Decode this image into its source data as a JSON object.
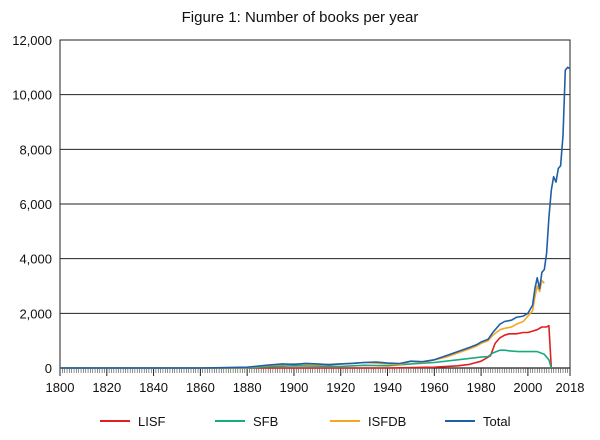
{
  "chart_data": {
    "type": "line",
    "title": "Figure 1: Number of books per year",
    "xlabel": "",
    "ylabel": "",
    "xlim": [
      1800,
      2018
    ],
    "ylim": [
      0,
      12000
    ],
    "grid": "horizontal",
    "legend_position": "bottom",
    "x_tick_labels": [
      "1800",
      "1820",
      "1840",
      "1860",
      "1880",
      "1900",
      "1920",
      "1940",
      "1960",
      "1980",
      "2000",
      "2018"
    ],
    "x_tick_values": [
      1800,
      1820,
      1840,
      1860,
      1880,
      1900,
      1920,
      1940,
      1960,
      1980,
      2000,
      2018
    ],
    "y_tick_labels": [
      "0",
      "2,000",
      "4,000",
      "6,000",
      "8,000",
      "10,000",
      "12,000"
    ],
    "y_tick_values": [
      0,
      2000,
      4000,
      6000,
      8000,
      10000,
      12000
    ],
    "series": [
      {
        "name": "LISF",
        "color": "#e02020",
        "points": [
          [
            1800,
            0
          ],
          [
            1940,
            0
          ],
          [
            1960,
            30
          ],
          [
            1970,
            80
          ],
          [
            1975,
            130
          ],
          [
            1980,
            250
          ],
          [
            1984,
            450
          ],
          [
            1986,
            900
          ],
          [
            1988,
            1100
          ],
          [
            1990,
            1200
          ],
          [
            1992,
            1250
          ],
          [
            1995,
            1250
          ],
          [
            1998,
            1300
          ],
          [
            2000,
            1300
          ],
          [
            2002,
            1350
          ],
          [
            2004,
            1400
          ],
          [
            2006,
            1500
          ],
          [
            2008,
            1500
          ],
          [
            2009,
            1550
          ],
          [
            2010,
            0
          ]
        ]
      },
      {
        "name": "SFB",
        "color": "#1aaa80",
        "points": [
          [
            1800,
            0
          ],
          [
            1860,
            0
          ],
          [
            1880,
            0
          ],
          [
            1890,
            50
          ],
          [
            1900,
            80
          ],
          [
            1920,
            60
          ],
          [
            1930,
            100
          ],
          [
            1940,
            80
          ],
          [
            1950,
            150
          ],
          [
            1960,
            200
          ],
          [
            1970,
            300
          ],
          [
            1975,
            350
          ],
          [
            1980,
            400
          ],
          [
            1983,
            420
          ],
          [
            1985,
            550
          ],
          [
            1988,
            650
          ],
          [
            1990,
            650
          ],
          [
            1993,
            620
          ],
          [
            1996,
            600
          ],
          [
            2000,
            600
          ],
          [
            2004,
            600
          ],
          [
            2007,
            500
          ],
          [
            2009,
            300
          ],
          [
            2010,
            0
          ]
        ]
      },
      {
        "name": "ISFDB",
        "color": "#f5a623",
        "points": [
          [
            1800,
            0
          ],
          [
            1860,
            0
          ],
          [
            1880,
            20
          ],
          [
            1890,
            100
          ],
          [
            1900,
            150
          ],
          [
            1910,
            120
          ],
          [
            1920,
            150
          ],
          [
            1930,
            200
          ],
          [
            1940,
            150
          ],
          [
            1945,
            120
          ],
          [
            1950,
            250
          ],
          [
            1955,
            200
          ],
          [
            1960,
            300
          ],
          [
            1965,
            400
          ],
          [
            1970,
            550
          ],
          [
            1975,
            700
          ],
          [
            1978,
            800
          ],
          [
            1980,
            900
          ],
          [
            1983,
            1000
          ],
          [
            1985,
            1200
          ],
          [
            1988,
            1400
          ],
          [
            1990,
            1450
          ],
          [
            1993,
            1500
          ],
          [
            1995,
            1600
          ],
          [
            1998,
            1700
          ],
          [
            2000,
            1900
          ],
          [
            2002,
            2100
          ],
          [
            2003,
            2600
          ],
          [
            2004,
            3000
          ],
          [
            2005,
            2800
          ],
          [
            2006,
            3200
          ],
          [
            2007,
            3100
          ]
        ]
      },
      {
        "name": "Total",
        "color": "#1f5fa8",
        "points": [
          [
            1800,
            0
          ],
          [
            1860,
            0
          ],
          [
            1880,
            30
          ],
          [
            1888,
            100
          ],
          [
            1895,
            150
          ],
          [
            1900,
            130
          ],
          [
            1905,
            170
          ],
          [
            1910,
            150
          ],
          [
            1915,
            120
          ],
          [
            1920,
            150
          ],
          [
            1925,
            170
          ],
          [
            1930,
            200
          ],
          [
            1935,
            220
          ],
          [
            1940,
            180
          ],
          [
            1945,
            160
          ],
          [
            1950,
            250
          ],
          [
            1955,
            230
          ],
          [
            1960,
            300
          ],
          [
            1965,
            450
          ],
          [
            1970,
            600
          ],
          [
            1975,
            750
          ],
          [
            1978,
            850
          ],
          [
            1980,
            950
          ],
          [
            1983,
            1050
          ],
          [
            1985,
            1300
          ],
          [
            1988,
            1600
          ],
          [
            1990,
            1700
          ],
          [
            1993,
            1750
          ],
          [
            1995,
            1850
          ],
          [
            1998,
            1900
          ],
          [
            2000,
            2000
          ],
          [
            2002,
            2300
          ],
          [
            2003,
            2900
          ],
          [
            2004,
            3300
          ],
          [
            2005,
            2900
          ],
          [
            2006,
            3500
          ],
          [
            2007,
            3600
          ],
          [
            2008,
            4200
          ],
          [
            2009,
            5500
          ],
          [
            2010,
            6500
          ],
          [
            2011,
            7000
          ],
          [
            2012,
            6800
          ],
          [
            2013,
            7300
          ],
          [
            2014,
            7400
          ],
          [
            2015,
            8500
          ],
          [
            2016,
            10900
          ],
          [
            2017,
            11000
          ],
          [
            2018,
            10950
          ]
        ]
      }
    ]
  }
}
